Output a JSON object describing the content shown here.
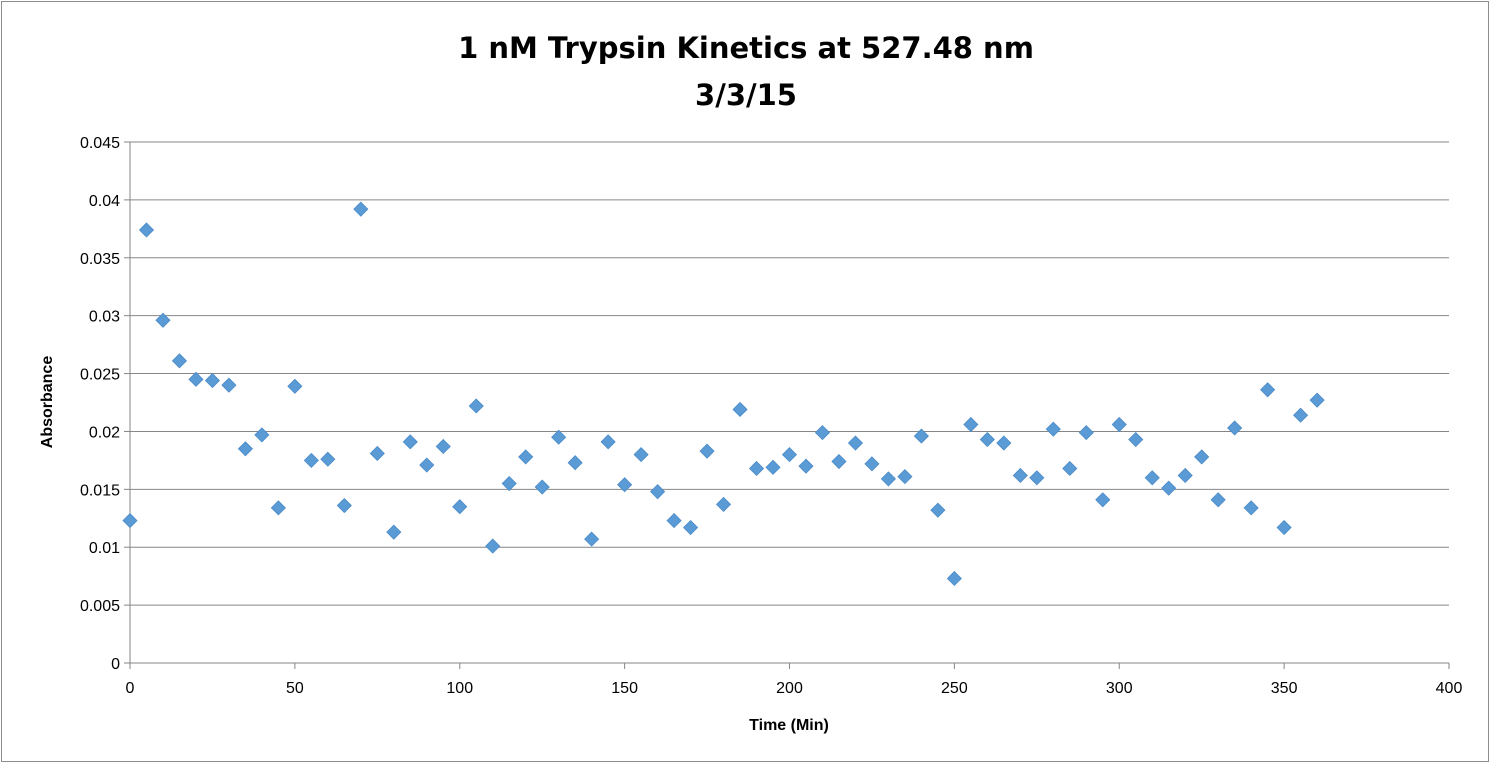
{
  "chart_data": {
    "type": "scatter",
    "title": "1 nM Trypsin Kinetics at 527.48 nm",
    "subtitle": "3/3/15",
    "xlabel": "Time (Min)",
    "ylabel": "Absorbance",
    "xlim": [
      0,
      400
    ],
    "ylim": [
      0,
      0.045
    ],
    "xticks": [
      0,
      50,
      100,
      150,
      200,
      250,
      300,
      350,
      400
    ],
    "yticks": [
      0,
      0.005,
      0.01,
      0.015,
      0.02,
      0.025,
      0.03,
      0.035,
      0.04,
      0.045
    ],
    "ytick_labels": [
      "0",
      "0.005",
      "0.01",
      "0.015",
      "0.02",
      "0.025",
      "0.03",
      "0.035",
      "0.04",
      "0.045"
    ],
    "grid": "horizontal",
    "legend": "none",
    "marker_color": "#5b9bd5",
    "x": [
      0,
      5,
      10,
      15,
      20,
      25,
      30,
      35,
      40,
      45,
      50,
      55,
      60,
      65,
      70,
      75,
      80,
      85,
      90,
      95,
      100,
      105,
      110,
      115,
      120,
      125,
      130,
      135,
      140,
      145,
      150,
      155,
      160,
      165,
      170,
      175,
      180,
      185,
      190,
      195,
      200,
      205,
      210,
      215,
      220,
      225,
      230,
      235,
      240,
      245,
      250,
      255,
      260,
      265,
      270,
      275,
      280,
      285,
      290,
      295,
      300,
      305,
      310,
      315,
      320,
      325,
      330,
      335,
      340,
      345,
      350,
      355,
      360
    ],
    "y": [
      0.0123,
      0.0374,
      0.0296,
      0.0261,
      0.0245,
      0.0244,
      0.024,
      0.0185,
      0.0197,
      0.0134,
      0.0239,
      0.0175,
      0.0176,
      0.0136,
      0.0392,
      0.0181,
      0.0113,
      0.0191,
      0.0171,
      0.0187,
      0.0135,
      0.0222,
      0.0101,
      0.0155,
      0.0178,
      0.0152,
      0.0195,
      0.0173,
      0.0107,
      0.0191,
      0.0154,
      0.018,
      0.0148,
      0.0123,
      0.0117,
      0.0183,
      0.0137,
      0.0219,
      0.0168,
      0.0169,
      0.018,
      0.017,
      0.0199,
      0.0174,
      0.019,
      0.0172,
      0.0159,
      0.0161,
      0.0196,
      0.0132,
      0.0073,
      0.0206,
      0.0193,
      0.019,
      0.0162,
      0.016,
      0.0202,
      0.0168,
      0.0199,
      0.0141,
      0.0206,
      0.0193,
      0.016,
      0.0151,
      0.0162,
      0.0178,
      0.0141,
      0.0203,
      0.0134,
      0.0236,
      0.0117,
      0.0214,
      0.0227
    ]
  }
}
